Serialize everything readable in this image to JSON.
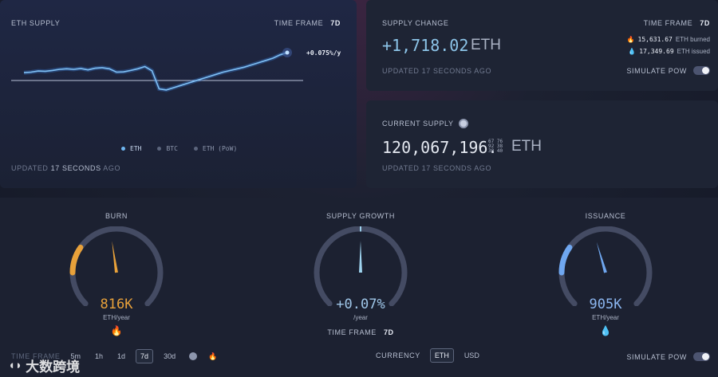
{
  "supply": {
    "title": "ETH SUPPLY",
    "timeframe_label": "TIME FRAME",
    "timeframe_value": "7d",
    "rate": "+0.075%/y",
    "legend": [
      {
        "label": "ETH",
        "color": "#6fb6f0"
      },
      {
        "label": "BTC",
        "color": "#5b647c"
      },
      {
        "label": "ETH (PoW)",
        "color": "#5b647c"
      }
    ],
    "updated_prefix": "UPDATED",
    "updated_value": "17 SECONDS",
    "updated_suffix": "AGO"
  },
  "change": {
    "title": "SUPPLY CHANGE",
    "timeframe_label": "TIME FRAME",
    "timeframe_value": "7d",
    "value": "+1,718.02",
    "unit": "ETH",
    "burned_value": "15,631.67",
    "burned_label": "ETH burned",
    "issued_value": "17,349.69",
    "issued_label": "ETH issued",
    "updated": "UPDATED 17 SECONDS AGO",
    "simulate_label": "SIMULATE PoW"
  },
  "current": {
    "title": "CURRENT SUPPLY",
    "value": "120,067,196.",
    "decimals": "67 76 92 38 38 40",
    "unit": "ETH",
    "updated": "UPDATED 17 SECONDS AGO"
  },
  "gauges": {
    "burn": {
      "title": "BURN",
      "value": "816K",
      "unit": "ETH/year",
      "emoji": "🔥",
      "color": "#e8a13a",
      "level": 0.47
    },
    "growth": {
      "title": "SUPPLY GROWTH",
      "value": "+0.07%",
      "unit": "/year",
      "color": "#9fd4ef",
      "level": 0.5,
      "timeframe_label": "TIME FRAME",
      "timeframe_value": "7d"
    },
    "issuance": {
      "title": "ISSUANCE",
      "value": "905K",
      "unit": "ETH/year",
      "emoji": "💧",
      "color": "#6fa7f0",
      "level": 0.44
    }
  },
  "controls": {
    "timeframe_label": "TIME FRAME",
    "timeframes": [
      "5m",
      "1h",
      "1d",
      "7d",
      "30d"
    ],
    "active_timeframe": "7d",
    "currency_label": "CURRENCY",
    "currencies": [
      "ETH",
      "USD"
    ],
    "active_currency": "ETH",
    "simulate_label": "SIMULATE PoW"
  },
  "watermark": "大数跨境",
  "chart_data": {
    "type": "line",
    "series": [
      {
        "name": "ETH",
        "values": [
          0.28,
          0.3,
          0.34,
          0.33,
          0.36,
          0.4,
          0.42,
          0.4,
          0.43,
          0.38,
          0.44,
          0.46,
          0.42,
          0.3,
          0.31,
          0.36,
          0.42,
          0.5,
          0.35,
          -0.3,
          -0.34,
          -0.26,
          -0.18,
          -0.1,
          -0.02,
          0.06,
          0.14,
          0.22,
          0.3,
          0.36,
          0.42,
          0.48,
          0.56,
          0.64,
          0.72,
          0.8,
          0.92,
          1.0
        ]
      }
    ]
  }
}
